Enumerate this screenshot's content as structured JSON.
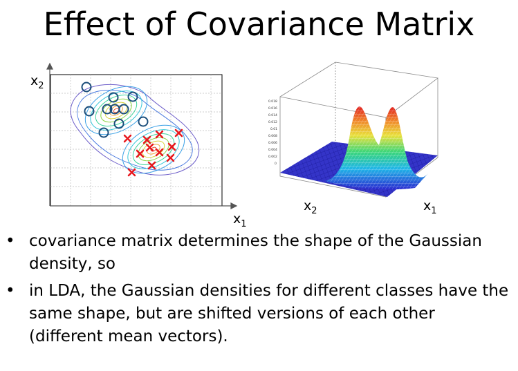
{
  "title": "Effect of Covariance Matrix",
  "left_plot": {
    "y_label": "x",
    "y_sub": "2",
    "x_label": "x",
    "x_sub": "1"
  },
  "right_plot": {
    "x_label": "x",
    "x_sub": "1",
    "y_label": "x",
    "y_sub": "2",
    "z_ticks": [
      "0.018",
      "0.016",
      "0.014",
      "0.012",
      "0.01",
      "0.008",
      "0.006",
      "0.004",
      "0.002",
      "0"
    ]
  },
  "bullets": [
    {
      "marker": "•",
      "text": "covariance matrix determines the shape of the Gaussian density, so"
    },
    {
      "marker": "•",
      "text": "in LDA, the Gaussian densities for different classes have the same shape, but are shifted versions of each other (different mean vectors)."
    }
  ],
  "colors": {
    "circle_marker": "#1a4d7a",
    "cross_marker": "#e8161c"
  }
}
